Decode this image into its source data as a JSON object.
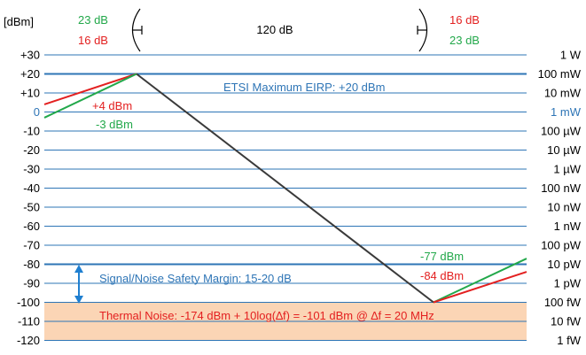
{
  "diagram": {
    "y_unit_label": "[dBm]",
    "left_ticks": [
      "+30",
      "+20",
      "+10",
      "0",
      "-10",
      "-20",
      "-30",
      "-40",
      "-50",
      "-60",
      "-70",
      "-80",
      "-90",
      "-100",
      "-110",
      "-120"
    ],
    "tick_values": [
      30,
      20,
      10,
      0,
      -10,
      -20,
      -30,
      -40,
      -50,
      -60,
      -70,
      -80,
      -90,
      -100,
      -110,
      -120
    ],
    "right_ticks": [
      "1 W",
      "100 mW",
      "10 mW",
      "1 mW",
      "100 µW",
      "10 µW",
      "1 µW",
      "100 nW",
      "10 nW",
      "1 nW",
      "100 pW",
      "10 pW",
      "1 pW",
      "100 fW",
      "10 fW",
      "1 fW"
    ],
    "highlight_value": 0,
    "thick_lines": [
      20,
      -80
    ],
    "noise_band": {
      "from": -100,
      "to": -120
    },
    "labels": {
      "eirp": "ETSI Maximum EIRP:  +20 dBm",
      "snr_margin": "Signal/Noise Safety Margin:  15-20 dB",
      "thermal_noise": "Thermal Noise: -174 dBm + 10log(∆f) = -101 dBm @  ∆f = 20 MHz",
      "span": "120 dB",
      "top_left_green": "23 dB",
      "top_left_red": "16 dB",
      "top_right_red": "16 dB",
      "top_right_green": "23 dB",
      "red_start": "+4 dBm",
      "green_start": "-3 dBm",
      "green_end": "-77 dBm",
      "red_end": "-84 dBm"
    },
    "colors": {
      "grid": "#2e75b6",
      "highlight": "#2e75b6",
      "red": "#e32020",
      "green": "#22a84a",
      "path": "#3a3a3a",
      "noise_band": "#fbd5b5",
      "arrow": "#1f7fd0"
    }
  }
}
